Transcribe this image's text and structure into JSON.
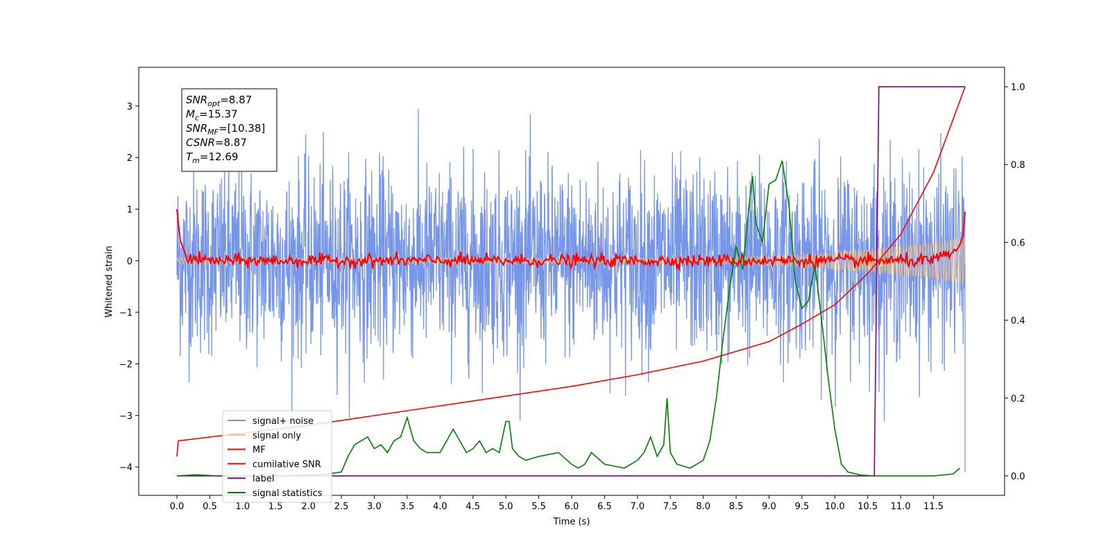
{
  "chart_data": {
    "type": "line",
    "title": "",
    "xlabel": "Time (s)",
    "ylabel": "Whitened strain",
    "y2label": "",
    "xlim": [
      -0.58,
      12.58
    ],
    "ylim": [
      -4.55,
      3.75
    ],
    "y2lim": [
      -0.05,
      1.05
    ],
    "x_ticks": [
      0.0,
      0.5,
      1.0,
      1.5,
      2.0,
      2.5,
      3.0,
      3.5,
      4.0,
      4.5,
      5.0,
      5.5,
      6.0,
      6.5,
      7.0,
      7.5,
      8.0,
      8.5,
      9.0,
      9.5,
      10.0,
      10.5,
      11.0,
      11.5
    ],
    "x_tick_labels": [
      "0.0",
      "0.5",
      "1.0",
      "1.5",
      "2.0",
      "2.5",
      "3.0",
      "3.5",
      "4.0",
      "4.5",
      "5.0",
      "5.5",
      "6.0",
      "6.5",
      "7.0",
      "7.5",
      "8.0",
      "8.5",
      "9.0",
      "9.5",
      "10.0",
      "10.5",
      "11.0",
      "11.5"
    ],
    "y_ticks": [
      -4,
      -3,
      -2,
      -1,
      0,
      1,
      2,
      3
    ],
    "y_tick_labels": [
      "−4",
      "−3",
      "−2",
      "−1",
      "0",
      "1",
      "2",
      "3"
    ],
    "y2_ticks": [
      0.0,
      0.2,
      0.4,
      0.6,
      0.8,
      1.0
    ],
    "y2_tick_labels": [
      "0.0",
      "0.2",
      "0.4",
      "0.6",
      "0.8",
      "1.0"
    ],
    "grid": false,
    "legend_position": "lower-left",
    "stats_box": [
      {
        "main": "SNR",
        "sub": "opt",
        "value": "=8.87"
      },
      {
        "main": "M",
        "sub": "c",
        "value": "=15.37"
      },
      {
        "main": "SNR",
        "sub": "MF",
        "value": "=[10.38]"
      },
      {
        "main": "CSNR",
        "sub": "",
        "value": "=8.87"
      },
      {
        "main": "T",
        "sub": "m",
        "value": "=12.69"
      }
    ],
    "series": [
      {
        "name": "signal+ noise",
        "axis": "left",
        "color": "#7796e8",
        "noise_std": 0.9,
        "x_range": [
          0.0,
          11.98
        ]
      },
      {
        "name": "signal only",
        "axis": "left",
        "color": "#f5bf7a",
        "envelope": {
          "x": [
            0.0,
            8.0,
            9.5,
            10.5,
            11.0,
            11.5,
            11.98
          ],
          "amp": [
            0.05,
            0.05,
            0.12,
            0.22,
            0.28,
            0.35,
            0.45
          ]
        }
      },
      {
        "name": "MF",
        "axis": "left",
        "color": "#ff0000",
        "x": [
          0.0,
          0.05,
          0.15,
          0.5,
          1.0,
          2.0,
          4.0,
          6.0,
          8.0,
          10.0,
          11.5,
          11.85,
          11.9,
          11.95,
          11.98
        ],
        "y": [
          1.0,
          0.4,
          0.05,
          0.0,
          0.0,
          0.0,
          0.0,
          0.0,
          0.0,
          0.0,
          0.0,
          0.2,
          0.3,
          0.5,
          0.95
        ]
      },
      {
        "name": "cumilative SNR",
        "axis": "right",
        "color": "#ff0000",
        "x": [
          0.0,
          0.02,
          1.0,
          2.0,
          3.0,
          4.0,
          5.0,
          6.0,
          7.0,
          8.0,
          8.5,
          9.0,
          9.5,
          10.0,
          10.5,
          11.0,
          11.5,
          11.98
        ],
        "y": [
          0.05,
          0.09,
          0.11,
          0.13,
          0.155,
          0.18,
          0.205,
          0.23,
          0.26,
          0.295,
          0.32,
          0.345,
          0.39,
          0.44,
          0.52,
          0.62,
          0.78,
          1.0
        ]
      },
      {
        "name": "label",
        "axis": "right",
        "color": "#800080",
        "x": [
          0.0,
          10.6,
          10.67,
          11.98
        ],
        "y": [
          0.0,
          0.0,
          1.0,
          1.0
        ]
      },
      {
        "name": "signal statistics",
        "axis": "right",
        "color": "#008000",
        "x": [
          0.0,
          0.3,
          0.6,
          1.0,
          1.5,
          2.0,
          2.3,
          2.5,
          2.6,
          2.7,
          2.8,
          2.9,
          3.0,
          3.1,
          3.2,
          3.3,
          3.4,
          3.5,
          3.55,
          3.6,
          3.7,
          3.8,
          4.0,
          4.2,
          4.3,
          4.4,
          4.5,
          4.6,
          4.7,
          4.8,
          4.9,
          5.0,
          5.05,
          5.1,
          5.2,
          5.3,
          5.5,
          5.8,
          6.0,
          6.1,
          6.2,
          6.3,
          6.5,
          6.8,
          7.0,
          7.1,
          7.2,
          7.3,
          7.4,
          7.45,
          7.5,
          7.6,
          7.8,
          8.0,
          8.1,
          8.2,
          8.3,
          8.4,
          8.5,
          8.6,
          8.7,
          8.75,
          8.8,
          8.9,
          9.0,
          9.1,
          9.2,
          9.3,
          9.4,
          9.5,
          9.6,
          9.65,
          9.7,
          9.8,
          9.9,
          10.0,
          10.1,
          10.2,
          10.4,
          10.6,
          11.0,
          11.5,
          11.8,
          11.9
        ],
        "y": [
          0.0,
          0.003,
          0.0,
          0.0,
          0.0,
          0.002,
          0.005,
          0.01,
          0.05,
          0.08,
          0.09,
          0.1,
          0.07,
          0.08,
          0.06,
          0.09,
          0.1,
          0.15,
          0.12,
          0.09,
          0.07,
          0.06,
          0.06,
          0.12,
          0.09,
          0.06,
          0.07,
          0.09,
          0.06,
          0.07,
          0.06,
          0.14,
          0.14,
          0.07,
          0.05,
          0.04,
          0.05,
          0.06,
          0.03,
          0.02,
          0.03,
          0.06,
          0.03,
          0.02,
          0.04,
          0.06,
          0.1,
          0.05,
          0.08,
          0.2,
          0.06,
          0.03,
          0.02,
          0.04,
          0.09,
          0.2,
          0.35,
          0.48,
          0.59,
          0.53,
          0.7,
          0.77,
          0.65,
          0.6,
          0.75,
          0.76,
          0.81,
          0.7,
          0.5,
          0.43,
          0.45,
          0.5,
          0.54,
          0.4,
          0.25,
          0.12,
          0.03,
          0.01,
          0.002,
          0.0,
          0.0,
          0.0,
          0.005,
          0.02
        ]
      }
    ]
  }
}
